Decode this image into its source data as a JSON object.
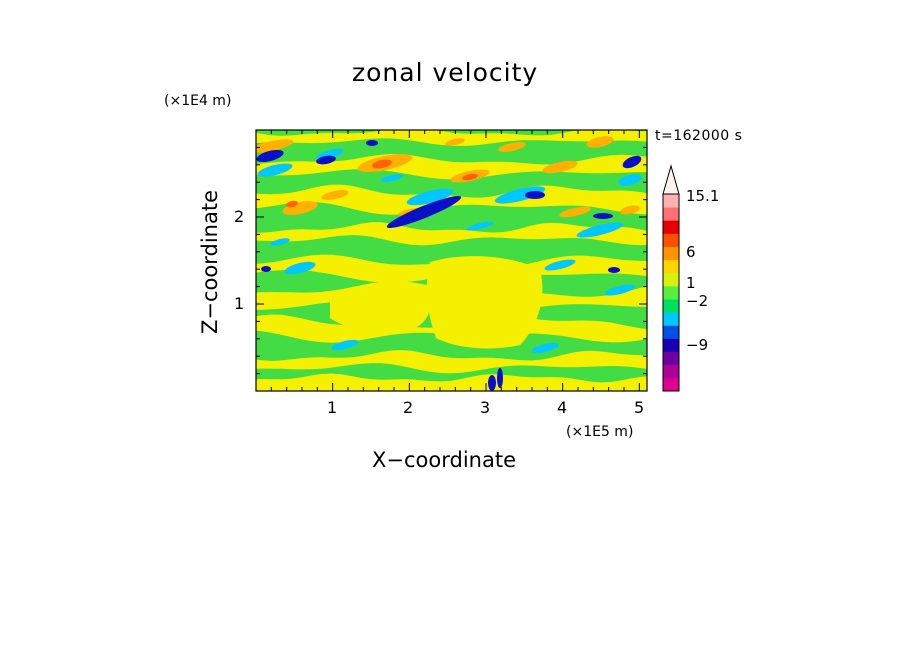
{
  "chart_data": {
    "type": "heatmap",
    "title": "zonal velocity",
    "xlabel": "X−coordinate",
    "ylabel": "Z−coordinate",
    "x_unit": "(×1E5 m)",
    "y_unit": "(×1E4 m)",
    "time_label": "t=162000 s",
    "xlim": [
      0,
      5.1
    ],
    "ylim": [
      0,
      3.0
    ],
    "x_ticks": [
      1,
      2,
      3,
      4,
      5
    ],
    "y_ticks": [
      1,
      2
    ],
    "x_tick_labels": [
      "1",
      "2",
      "3",
      "4",
      "5"
    ],
    "y_tick_labels": [
      "1",
      "2"
    ],
    "colorbar": {
      "extend_max": true,
      "levels": [
        -15.1,
        -12,
        -9,
        -6,
        -4,
        -2,
        -1,
        0,
        1,
        2,
        4,
        6,
        9,
        12,
        15.1
      ],
      "colors": [
        "#e00090",
        "#b0009a",
        "#6e00a0",
        "#1a00b4",
        "#0050e8",
        "#00c8ff",
        "#00e060",
        "#58f040",
        "#d8f010",
        "#ffd400",
        "#ff9400",
        "#ff5000",
        "#e80000",
        "#ff7070",
        "#ffb0b0"
      ],
      "tick_labels": [
        "15.1",
        "6",
        "1",
        "−2",
        "−9"
      ],
      "tick_values": [
        15.1,
        6,
        1,
        -2,
        -9
      ]
    },
    "dominant_colors": {
      "strong_negative": "#0a10c8",
      "weak_negative": "#00c8ff",
      "near_zero": "#44dc44",
      "weak_positive": "#f4f000",
      "moderate_positive": "#ffb000",
      "strong_positive": "#ff6000"
    },
    "grid": false,
    "legend": "colorbar-right"
  }
}
